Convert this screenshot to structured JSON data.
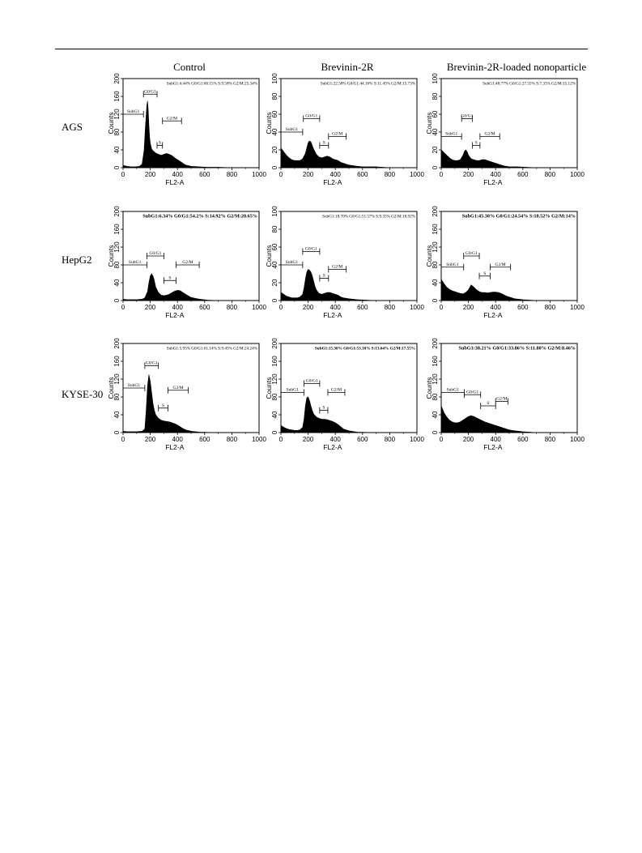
{
  "columns": [
    "Control",
    "Brevinin-2R",
    "Brevinin-2R-loaded nonoparticle"
  ],
  "rows": [
    "AGS",
    "HepG2",
    "KYSE-30"
  ],
  "chart_data": [
    {
      "type": "area",
      "row": "AGS",
      "column": "Control",
      "xlabel": "FL2-A",
      "ylabel": "Counts",
      "xlim": [
        0,
        1000
      ],
      "ylim": [
        0,
        200
      ],
      "xticks": [
        "0",
        "200",
        "400",
        "600",
        "800",
        "1000"
      ],
      "yticks": [
        "0",
        "40",
        "80",
        "120",
        "160",
        "200"
      ],
      "stats": "SubG1:4.44% G0/G1:60.15% S:9.58% G2/M:25.34%",
      "gates": [
        {
          "label": "SubG1",
          "x": [
            0,
            150
          ],
          "y": 120
        },
        {
          "label": "G0/G1",
          "x": [
            150,
            250
          ],
          "y": 165
        },
        {
          "label": "S",
          "x": [
            250,
            290
          ],
          "y": 50
        },
        {
          "label": "G2/M",
          "x": [
            290,
            430
          ],
          "y": 105
        }
      ],
      "x": [
        0,
        30,
        60,
        90,
        120,
        140,
        155,
        165,
        175,
        180,
        185,
        190,
        195,
        200,
        210,
        220,
        240,
        260,
        280,
        300,
        320,
        340,
        360,
        380,
        400,
        420,
        440,
        460,
        500,
        560,
        620,
        700,
        800,
        1000
      ],
      "y": [
        5,
        3,
        2,
        2,
        3,
        8,
        40,
        95,
        140,
        150,
        130,
        95,
        70,
        55,
        42,
        38,
        33,
        30,
        28,
        30,
        32,
        30,
        27,
        22,
        18,
        14,
        10,
        6,
        3,
        2,
        1,
        1,
        0,
        0
      ]
    },
    {
      "type": "area",
      "row": "AGS",
      "column": "Brevinin-2R",
      "xlabel": "FL2-A",
      "ylabel": "Counts",
      "xlim": [
        0,
        1000
      ],
      "ylim": [
        0,
        100
      ],
      "xticks": [
        "0",
        "200",
        "400",
        "600",
        "800",
        "1000"
      ],
      "yticks": [
        "0",
        "20",
        "40",
        "60",
        "80",
        "100"
      ],
      "stats": "SubG1:22.58% G0/G1:44.16% S:11.45% G2/M:15.73%",
      "gates": [
        {
          "label": "SubG1",
          "x": [
            0,
            160
          ],
          "y": 40
        },
        {
          "label": "G0/G1",
          "x": [
            165,
            285
          ],
          "y": 55
        },
        {
          "label": "S",
          "x": [
            285,
            350
          ],
          "y": 25
        },
        {
          "label": "G2/M",
          "x": [
            350,
            480
          ],
          "y": 35
        }
      ],
      "x": [
        0,
        20,
        40,
        60,
        80,
        100,
        120,
        140,
        160,
        180,
        190,
        200,
        210,
        220,
        230,
        240,
        260,
        280,
        300,
        320,
        340,
        360,
        380,
        400,
        420,
        440,
        460,
        480,
        500,
        540,
        600,
        700,
        800,
        1000
      ],
      "y": [
        22,
        18,
        14,
        11,
        9,
        8,
        8,
        8,
        10,
        16,
        22,
        28,
        30,
        29,
        25,
        21,
        15,
        12,
        11,
        12,
        13,
        12,
        10,
        9,
        8,
        6,
        5,
        4,
        3,
        2,
        1,
        1,
        0,
        0
      ]
    },
    {
      "type": "area",
      "row": "AGS",
      "column": "Brevinin-2R-loaded nonoparticle",
      "xlabel": "FL2-A",
      "ylabel": "Counts",
      "xlim": [
        0,
        1000
      ],
      "ylim": [
        0,
        100
      ],
      "xticks": [
        "0",
        "200",
        "400",
        "600",
        "800",
        "1000"
      ],
      "yticks": [
        "0",
        "20",
        "40",
        "60",
        "80",
        "100"
      ],
      "stats": "SubG1:48.77% G0/G1:27.55% S:7.35% G2/M:15.12%",
      "gates": [
        {
          "label": "SubG1",
          "x": [
            0,
            150
          ],
          "y": 35
        },
        {
          "label": "G0/G1",
          "x": [
            150,
            230
          ],
          "y": 55
        },
        {
          "label": "S",
          "x": [
            230,
            285
          ],
          "y": 25
        },
        {
          "label": "G2/M",
          "x": [
            285,
            430
          ],
          "y": 35
        }
      ],
      "x": [
        0,
        20,
        40,
        60,
        80,
        100,
        120,
        140,
        160,
        170,
        180,
        190,
        200,
        220,
        240,
        260,
        280,
        300,
        320,
        340,
        360,
        380,
        400,
        420,
        440,
        460,
        500,
        560,
        700,
        1000
      ],
      "y": [
        20,
        17,
        14,
        11,
        9,
        8,
        8,
        9,
        14,
        18,
        20,
        18,
        14,
        10,
        9,
        8,
        8,
        9,
        9,
        8,
        7,
        6,
        5,
        4,
        3,
        2,
        1,
        1,
        0,
        0
      ]
    },
    {
      "type": "area",
      "row": "HepG2",
      "column": "Control",
      "xlabel": "FL2-A",
      "ylabel": "Counts",
      "xlim": [
        0,
        1000
      ],
      "ylim": [
        0,
        200
      ],
      "xticks": [
        "0",
        "200",
        "400",
        "600",
        "800",
        "1000"
      ],
      "yticks": [
        "0",
        "40",
        "80",
        "120",
        "160",
        "200"
      ],
      "stats": "SubG1:6.34% G0/G1:54.2% S:14.92% G2/M:20.65%",
      "gates": [
        {
          "label": "SubG1",
          "x": [
            0,
            175
          ],
          "y": 80
        },
        {
          "label": "G0/G1",
          "x": [
            175,
            300
          ],
          "y": 100
        },
        {
          "label": "S",
          "x": [
            300,
            390
          ],
          "y": 45
        },
        {
          "label": "G2/M",
          "x": [
            390,
            560
          ],
          "y": 80
        }
      ],
      "x": [
        0,
        30,
        60,
        100,
        140,
        160,
        180,
        190,
        200,
        210,
        220,
        230,
        240,
        260,
        280,
        300,
        320,
        340,
        360,
        380,
        400,
        420,
        440,
        460,
        500,
        560,
        620,
        700,
        1000
      ],
      "y": [
        3,
        2,
        2,
        2,
        3,
        6,
        20,
        40,
        55,
        60,
        55,
        45,
        30,
        18,
        12,
        11,
        12,
        14,
        18,
        21,
        23,
        22,
        18,
        14,
        7,
        3,
        1,
        0,
        0
      ]
    },
    {
      "type": "area",
      "row": "HepG2",
      "column": "Brevinin-2R",
      "xlabel": "FL2-A",
      "ylabel": "Counts",
      "xlim": [
        0,
        1000
      ],
      "ylim": [
        0,
        100
      ],
      "xticks": [
        "0",
        "200",
        "400",
        "600",
        "800",
        "1000"
      ],
      "yticks": [
        "0",
        "20",
        "40",
        "60",
        "80",
        "100"
      ],
      "stats": "SubG1:18.70% G0/G1:51.57% S:9.35% G2/M:18.92%",
      "gates": [
        {
          "label": "SubG1",
          "x": [
            0,
            160
          ],
          "y": 40
        },
        {
          "label": "G0/G1",
          "x": [
            160,
            285
          ],
          "y": 55
        },
        {
          "label": "S",
          "x": [
            285,
            350
          ],
          "y": 25
        },
        {
          "label": "G2/M",
          "x": [
            350,
            480
          ],
          "y": 35
        }
      ],
      "x": [
        0,
        20,
        40,
        60,
        80,
        100,
        120,
        140,
        160,
        170,
        180,
        190,
        200,
        210,
        220,
        230,
        240,
        250,
        260,
        280,
        300,
        320,
        340,
        360,
        380,
        400,
        420,
        440,
        460,
        500,
        560,
        700,
        1000
      ],
      "y": [
        9,
        7,
        5,
        4,
        3,
        3,
        3,
        4,
        7,
        14,
        24,
        32,
        35,
        34,
        32,
        28,
        22,
        16,
        12,
        8,
        7,
        8,
        9,
        9,
        8,
        7,
        6,
        4,
        3,
        2,
        1,
        0,
        0
      ]
    },
    {
      "type": "area",
      "row": "HepG2",
      "column": "Brevinin-2R-loaded nonoparticle",
      "xlabel": "FL2-A",
      "ylabel": "Counts",
      "xlim": [
        0,
        1000
      ],
      "ylim": [
        0,
        200
      ],
      "xticks": [
        "0",
        "200",
        "400",
        "600",
        "800",
        "1000"
      ],
      "yticks": [
        "0",
        "40",
        "80",
        "120",
        "160",
        "200"
      ],
      "stats": "SubG1:45.30% G0/G1:24.54% S:10.52% G2/M:14%",
      "gates": [
        {
          "label": "SubG1",
          "x": [
            0,
            165
          ],
          "y": 75
        },
        {
          "label": "G0/G1",
          "x": [
            165,
            280
          ],
          "y": 100
        },
        {
          "label": "S",
          "x": [
            280,
            360
          ],
          "y": 55
        },
        {
          "label": "G2/M",
          "x": [
            360,
            510
          ],
          "y": 75
        }
      ],
      "x": [
        0,
        20,
        40,
        60,
        80,
        100,
        120,
        140,
        160,
        180,
        200,
        220,
        240,
        260,
        280,
        300,
        320,
        340,
        360,
        380,
        400,
        420,
        440,
        460,
        480,
        500,
        540,
        600,
        700,
        1000
      ],
      "y": [
        48,
        38,
        30,
        25,
        22,
        20,
        18,
        16,
        15,
        18,
        24,
        35,
        30,
        24,
        20,
        18,
        18,
        17,
        18,
        19,
        19,
        18,
        16,
        13,
        10,
        8,
        4,
        2,
        0,
        0
      ]
    },
    {
      "type": "area",
      "row": "KYSE-30",
      "column": "Control",
      "xlabel": "FL2-A",
      "ylabel": "Counts",
      "xlim": [
        0,
        1000
      ],
      "ylim": [
        0,
        200
      ],
      "xticks": [
        "0",
        "200",
        "400",
        "600",
        "800",
        "1000"
      ],
      "yticks": [
        "0",
        "40",
        "80",
        "120",
        "160",
        "200"
      ],
      "stats": "SubG1:5.95% G0/G1:61.14% S:9.45% G2/M:24.24%",
      "gates": [
        {
          "label": "SubG1",
          "x": [
            0,
            160
          ],
          "y": 100
        },
        {
          "label": "G0/G1",
          "x": [
            160,
            260
          ],
          "y": 150
        },
        {
          "label": "S",
          "x": [
            260,
            330
          ],
          "y": 55
        },
        {
          "label": "G2/M",
          "x": [
            330,
            480
          ],
          "y": 95
        }
      ],
      "x": [
        0,
        30,
        60,
        100,
        140,
        160,
        170,
        180,
        190,
        200,
        210,
        220,
        230,
        240,
        260,
        280,
        300,
        320,
        340,
        360,
        380,
        400,
        420,
        440,
        460,
        500,
        560,
        700,
        1000
      ],
      "y": [
        3,
        2,
        2,
        2,
        3,
        8,
        50,
        105,
        130,
        115,
        90,
        65,
        50,
        40,
        32,
        28,
        26,
        25,
        24,
        22,
        20,
        17,
        13,
        9,
        6,
        3,
        1,
        0,
        0
      ]
    },
    {
      "type": "area",
      "row": "KYSE-30",
      "column": "Brevinin-2R",
      "xlabel": "FL2-A",
      "ylabel": "Counts",
      "xlim": [
        0,
        1000
      ],
      "ylim": [
        0,
        200
      ],
      "xticks": [
        "0",
        "200",
        "400",
        "600",
        "800",
        "1000"
      ],
      "yticks": [
        "0",
        "40",
        "80",
        "120",
        "160",
        "200"
      ],
      "stats": "SubG1:15.30% G0/G1:53.10% S:13.64% G2/M:17.55%",
      "gates": [
        {
          "label": "SubG1",
          "x": [
            0,
            170
          ],
          "y": 90
        },
        {
          "label": "G0/G1",
          "x": [
            170,
            285
          ],
          "y": 110
        },
        {
          "label": "S",
          "x": [
            285,
            345
          ],
          "y": 50
        },
        {
          "label": "G2/M",
          "x": [
            345,
            470
          ],
          "y": 90
        }
      ],
      "x": [
        0,
        20,
        40,
        60,
        80,
        100,
        120,
        140,
        160,
        170,
        180,
        190,
        200,
        210,
        220,
        230,
        240,
        260,
        280,
        300,
        320,
        340,
        360,
        380,
        400,
        420,
        440,
        460,
        500,
        560,
        700,
        1000
      ],
      "y": [
        16,
        12,
        9,
        7,
        6,
        5,
        5,
        6,
        12,
        30,
        60,
        78,
        80,
        72,
        60,
        50,
        42,
        35,
        32,
        30,
        30,
        29,
        27,
        25,
        22,
        18,
        13,
        8,
        4,
        1,
        0,
        0
      ]
    },
    {
      "type": "area",
      "row": "KYSE-30",
      "column": "Brevinin-2R-loaded nonoparticle",
      "xlabel": "FL2-A",
      "ylabel": "Counts",
      "xlim": [
        0,
        1000
      ],
      "ylim": [
        0,
        200
      ],
      "xticks": [
        "0",
        "200",
        "400",
        "600",
        "800",
        "1000"
      ],
      "yticks": [
        "0",
        "40",
        "80",
        "120",
        "160",
        "200"
      ],
      "stats": "SubG1:38.21% G0/G1:33.86% S:11.80% G2/M:8.46%",
      "gates": [
        {
          "label": "SubG1",
          "x": [
            0,
            170
          ],
          "y": 90
        },
        {
          "label": "G0/G1",
          "x": [
            170,
            290
          ],
          "y": 85
        },
        {
          "label": "S",
          "x": [
            290,
            400
          ],
          "y": 60
        },
        {
          "label": "G2/M",
          "x": [
            400,
            490
          ],
          "y": 70
        }
      ],
      "x": [
        0,
        20,
        40,
        60,
        80,
        100,
        120,
        140,
        160,
        180,
        200,
        220,
        240,
        260,
        280,
        300,
        320,
        340,
        360,
        380,
        400,
        420,
        440,
        460,
        480,
        500,
        540,
        600,
        700,
        1000
      ],
      "y": [
        60,
        45,
        35,
        28,
        24,
        22,
        22,
        24,
        28,
        32,
        36,
        38,
        36,
        33,
        30,
        27,
        24,
        22,
        20,
        18,
        16,
        14,
        12,
        10,
        8,
        6,
        4,
        2,
        0,
        0
      ]
    }
  ]
}
